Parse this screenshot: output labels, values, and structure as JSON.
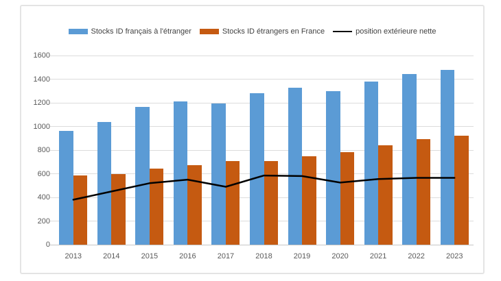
{
  "chart_data": {
    "type": "bar",
    "subtype": "grouped-bars-with-line-overlay",
    "title": "",
    "categories": [
      "2013",
      "2014",
      "2015",
      "2016",
      "2017",
      "2018",
      "2019",
      "2020",
      "2021",
      "2022",
      "2023"
    ],
    "series": [
      {
        "name": "Stocks ID français à l'étranger",
        "type": "bar",
        "color": "#5B9BD5",
        "values": [
          960,
          1040,
          1165,
          1210,
          1195,
          1280,
          1325,
          1300,
          1380,
          1445,
          1480
        ]
      },
      {
        "name": "Stocks ID étrangers en France",
        "type": "bar",
        "color": "#C55A11",
        "values": [
          585,
          595,
          645,
          670,
          710,
          705,
          745,
          780,
          840,
          890,
          920
        ]
      },
      {
        "name": "position extérieure nette",
        "type": "line",
        "color": "#000000",
        "values": [
          380,
          450,
          520,
          550,
          490,
          585,
          580,
          525,
          555,
          565,
          565
        ]
      }
    ],
    "xlabel": "",
    "ylabel": "",
    "ylim": [
      0,
      1600
    ],
    "yticks": [
      0,
      200,
      400,
      600,
      800,
      1000,
      1200,
      1400,
      1600
    ],
    "grid": true,
    "legend_position": "top"
  },
  "colors": {
    "gridline": "#DCDCDC",
    "axis_line": "#C6C6C6",
    "axis_text": "#595959",
    "legend_text": "#404040",
    "frame_border": "#E4E4E4",
    "background": "#FFFFFF"
  }
}
